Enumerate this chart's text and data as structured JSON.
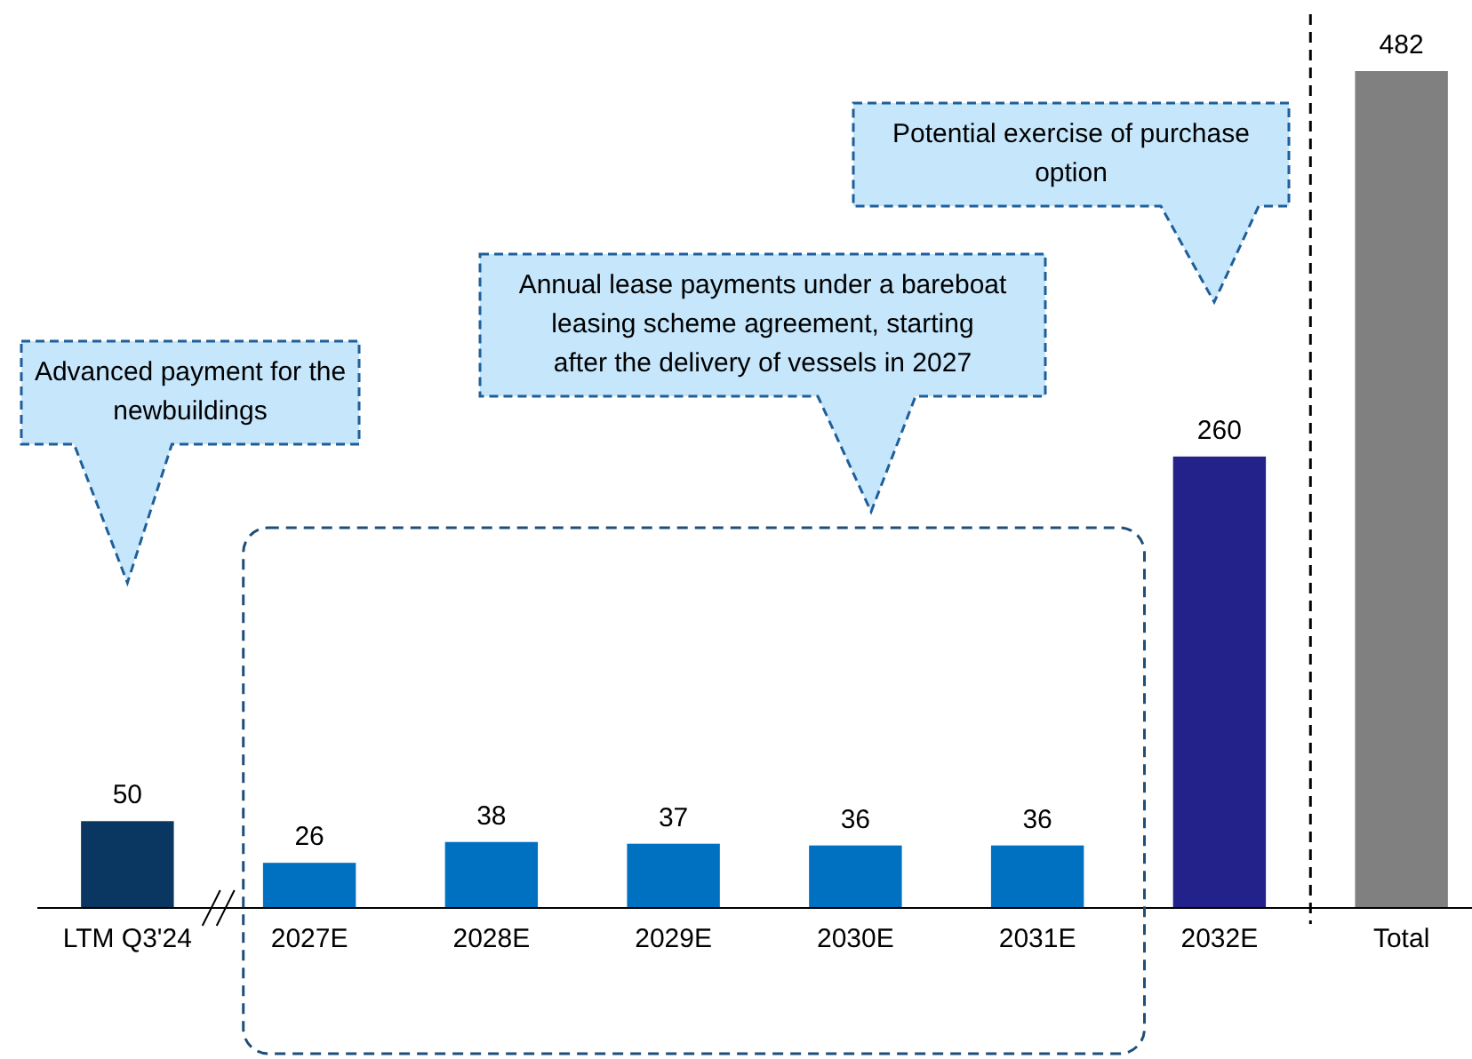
{
  "chart_data": {
    "type": "bar",
    "categories": [
      "LTM Q3'24",
      "2027E",
      "2028E",
      "2029E",
      "2030E",
      "2031E",
      "2032E",
      "Total"
    ],
    "values": [
      50,
      26,
      38,
      37,
      36,
      36,
      260,
      482
    ],
    "colors": [
      "#0a3761",
      "#0070c0",
      "#0070c0",
      "#0070c0",
      "#0070c0",
      "#0070c0",
      "#22228a",
      "#808080"
    ],
    "data_labels": true,
    "annotations": [
      "Advanced payment for the newbuildings",
      "Annual lease payments under a bareboat leasing scheme agreement, starting after the delivery of vessels in 2027",
      "Potential exercise of purchase option"
    ]
  }
}
